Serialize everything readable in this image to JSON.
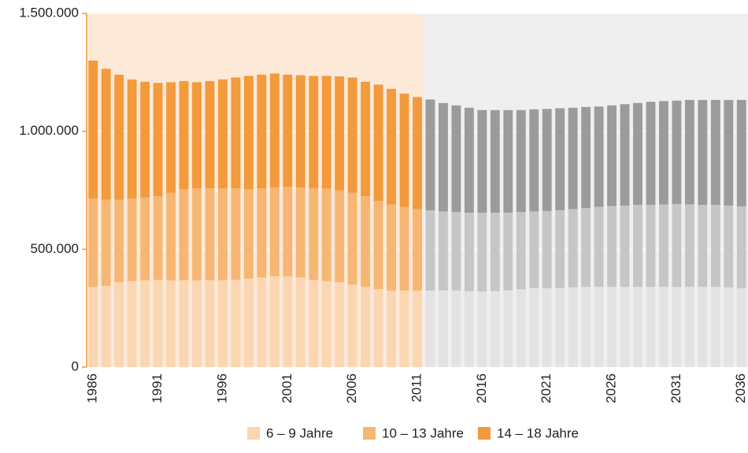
{
  "chart_data": {
    "type": "stacked_bar",
    "x": [
      1986,
      1987,
      1988,
      1989,
      1990,
      1991,
      1992,
      1993,
      1994,
      1995,
      1996,
      1997,
      1998,
      1999,
      2000,
      2001,
      2002,
      2003,
      2004,
      2005,
      2006,
      2007,
      2008,
      2009,
      2010,
      2011,
      2012,
      2013,
      2014,
      2015,
      2016,
      2017,
      2018,
      2019,
      2020,
      2021,
      2022,
      2023,
      2024,
      2025,
      2026,
      2027,
      2028,
      2029,
      2030,
      2031,
      2032,
      2033,
      2034,
      2035,
      2036
    ],
    "xlim": [
      1985.5,
      2036.5
    ],
    "xticks": [
      1986,
      1991,
      1996,
      2001,
      2006,
      2011,
      2016,
      2021,
      2026,
      2031,
      2036
    ],
    "ylim": [
      0,
      1500000
    ],
    "yticks": [
      0,
      {
        "value": 500000,
        "label": "500.000"
      },
      {
        "value": 1000000,
        "label": "1.000.000"
      },
      {
        "value": 1500000,
        "label": "1.500.000"
      }
    ],
    "grid": true,
    "background_regions": [
      {
        "xlim": [
          1985.5,
          2011.5
        ],
        "color": "#fde9d8"
      },
      {
        "xlim": [
          2011.5,
          2036.5
        ],
        "color": "#efefef"
      }
    ],
    "series": [
      {
        "name": "6 – 9 Jahre",
        "color": "#fad6b3",
        "projection_color": "#e3e3e3",
        "values": [
          340000,
          345000,
          360000,
          365000,
          368000,
          370000,
          368000,
          368000,
          368000,
          368000,
          368000,
          370000,
          375000,
          380000,
          385000,
          385000,
          380000,
          370000,
          365000,
          360000,
          350000,
          340000,
          330000,
          325000,
          325000,
          325000,
          325000,
          325000,
          325000,
          322000,
          320000,
          322000,
          325000,
          330000,
          335000,
          335000,
          335000,
          338000,
          340000,
          340000,
          340000,
          340000,
          340000,
          340000,
          340000,
          340000,
          340000,
          340000,
          340000,
          338000,
          335000
        ]
      },
      {
        "name": "10 – 13 Jahre",
        "color": "#f6b674",
        "projection_color": "#c6c6c6",
        "values": [
          375000,
          365000,
          350000,
          350000,
          352000,
          355000,
          372000,
          387000,
          390000,
          390000,
          390000,
          388000,
          380000,
          378000,
          377000,
          380000,
          382000,
          390000,
          393000,
          390000,
          390000,
          385000,
          375000,
          365000,
          355000,
          345000,
          340000,
          335000,
          333000,
          333000,
          335000,
          333000,
          330000,
          328000,
          325000,
          327000,
          330000,
          332000,
          335000,
          340000,
          343000,
          345000,
          348000,
          348000,
          350000,
          352000,
          350000,
          348000,
          348000,
          347000,
          347000
        ]
      },
      {
        "name": "14 – 18 Jahre",
        "color": "#f29a3c",
        "projection_color": "#9b9b9b",
        "values": [
          585000,
          555000,
          530000,
          505000,
          490000,
          480000,
          468000,
          458000,
          450000,
          455000,
          462000,
          470000,
          480000,
          482000,
          483000,
          475000,
          476000,
          475000,
          477000,
          483000,
          488000,
          485000,
          493000,
          490000,
          480000,
          475000,
          470000,
          460000,
          452000,
          445000,
          435000,
          435000,
          435000,
          432000,
          433000,
          433000,
          433000,
          430000,
          428000,
          425000,
          427000,
          430000,
          432000,
          437000,
          438000,
          438000,
          443000,
          445000,
          445000,
          448000,
          451000
        ]
      }
    ]
  }
}
